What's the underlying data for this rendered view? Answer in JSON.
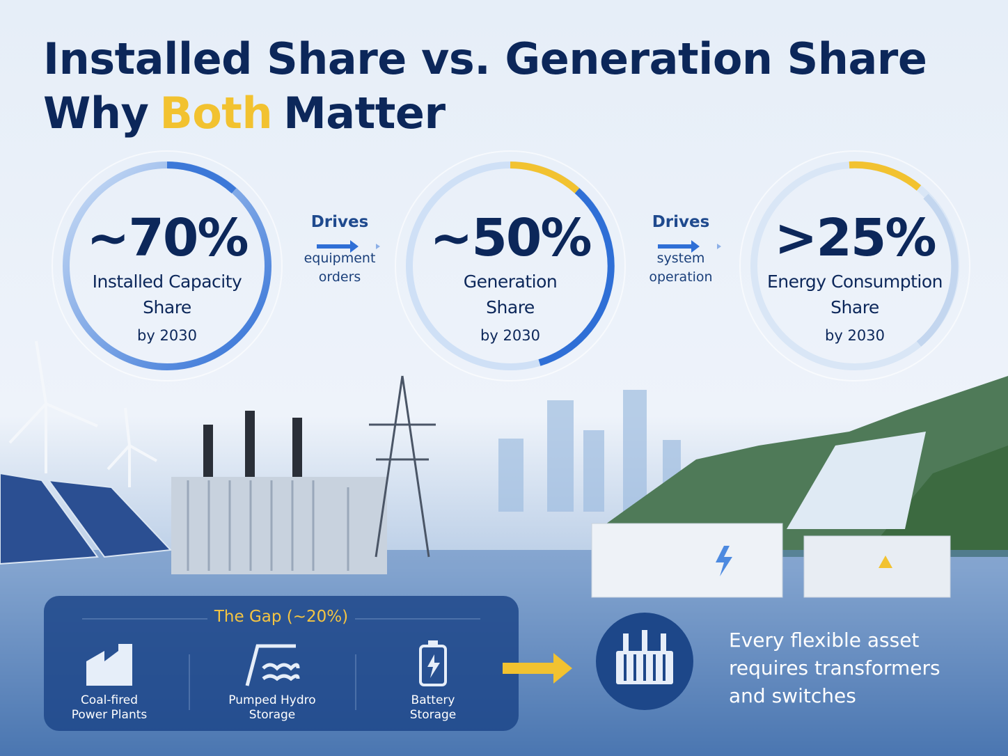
{
  "title": {
    "line1": "Installed Share vs. Generation Share",
    "line2": [
      "Why",
      "Both",
      "Matter"
    ]
  },
  "stats": [
    {
      "value": "~70%",
      "label": "Installed Capacity Share",
      "note": "by 2030"
    },
    {
      "value": "~50%",
      "label": "Generation Share",
      "note": "by 2030"
    },
    {
      "value": ">25%",
      "label": "Energy Consumption Share",
      "note": "by 2030"
    }
  ],
  "connectors": [
    {
      "verb": "Drives",
      "object": "equipment orders"
    },
    {
      "verb": "Drives",
      "object": "system operation"
    }
  ],
  "gap": {
    "title": "The Gap (~20%)",
    "items": [
      "Coal-fired Power Plants",
      "Pumped Hydro Storage",
      "Battery Storage"
    ]
  },
  "callout": "Every flexible asset requires transformers and switches"
}
